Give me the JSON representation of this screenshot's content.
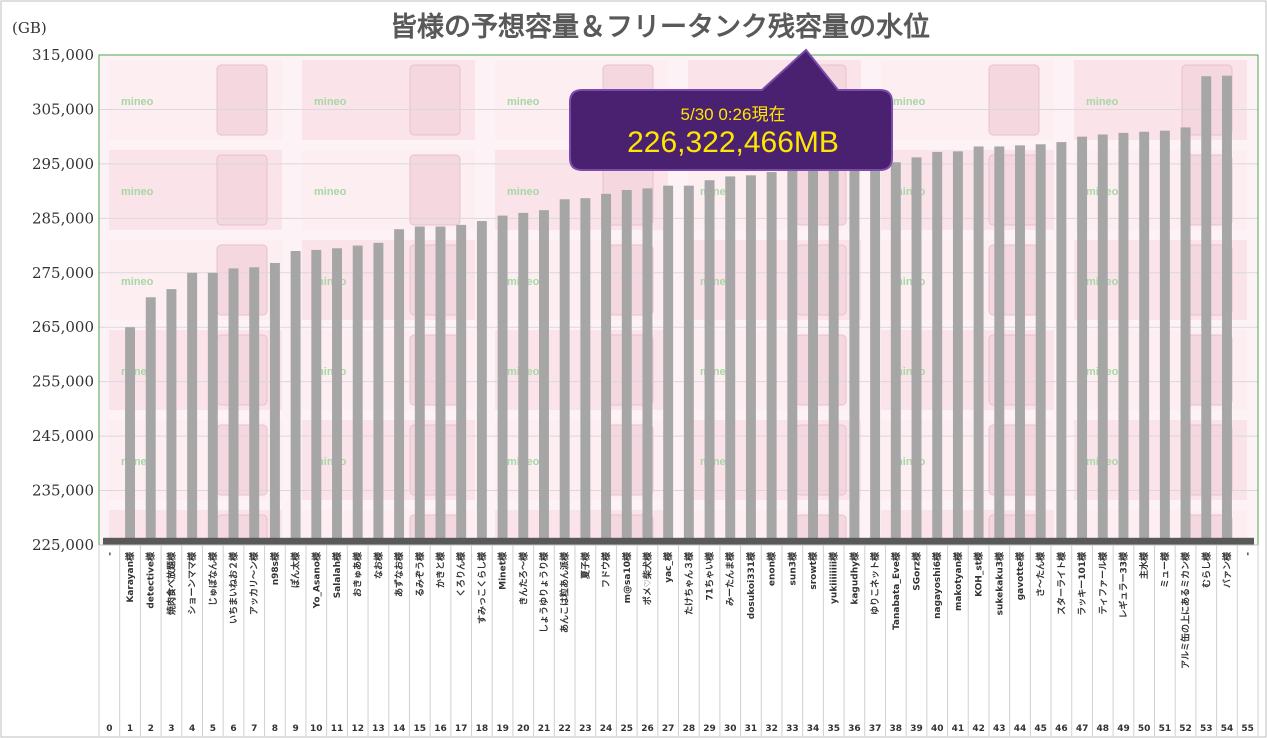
{
  "chart_data": {
    "type": "bar",
    "title": "皆様の予想容量＆フリータンク残容量の水位",
    "unit_label": "(GB)",
    "ylim": [
      225000,
      315000
    ],
    "yticks": [
      "225,000",
      "235,000",
      "245,000",
      "255,000",
      "265,000",
      "275,000",
      "285,000",
      "295,000",
      "305,000",
      "315,000"
    ],
    "ytick_values": [
      225000,
      235000,
      245000,
      255000,
      265000,
      275000,
      285000,
      295000,
      305000,
      315000
    ],
    "grid": true,
    "base_level": 226322,
    "indices": [
      "0",
      "1",
      "2",
      "3",
      "4",
      "5",
      "6",
      "7",
      "8",
      "9",
      "10",
      "11",
      "12",
      "13",
      "14",
      "15",
      "16",
      "17",
      "18",
      "19",
      "20",
      "21",
      "22",
      "23",
      "24",
      "25",
      "26",
      "27",
      "28",
      "29",
      "30",
      "31",
      "32",
      "33",
      "34",
      "35",
      "36",
      "37",
      "38",
      "39",
      "40",
      "41",
      "42",
      "43",
      "44",
      "45",
      "46",
      "47",
      "48",
      "49",
      "50",
      "51",
      "52",
      "53",
      "54",
      "55"
    ],
    "categories": [
      "-",
      "Karayan様",
      "detective様",
      "焼肉食べ放題様",
      "ショーンママ様",
      "じゅぼなん様",
      "いちまいねお２様",
      "アッカリ～ン様",
      "n98s様",
      "ぽん太様",
      "Yo_Asano様",
      "Salalah様",
      "おきゅあ様",
      "なお様",
      "あずなお様",
      "るみぞう様",
      "かきと様",
      "くろりん様",
      "すみっこくらし様",
      "Minet様",
      "きんたろ～様",
      "しょうゆりょうり様",
      "あんこは粒あん派様",
      "夏子様",
      "フドウ様",
      "m@sa10様",
      "ポメ♡柴犬様",
      "yac_様",
      "たけちゃん３様",
      "71ちゃい様",
      "みーたんま様",
      "dosukoi331様",
      "enon様",
      "sun3様",
      "srowt様",
      "yukiiiiiiii様",
      "kagudhy様",
      "ゆりこネット様",
      "Tanabata_Eve様",
      "SGorz様",
      "nagayoshi6様",
      "makotyan様",
      "KOH_st様",
      "sukekaku3様",
      "gavotte様",
      "さ～たん様",
      "スターライト様",
      "ラッキー101様",
      "ティファール様",
      "レギュラー33様",
      "主水様",
      "ミュー様",
      "アルミ缶の上にあるミカン様",
      "むらし様",
      "バァン様",
      "-"
    ],
    "values": [
      null,
      265000,
      270500,
      272000,
      275000,
      275000,
      275800,
      276000,
      276800,
      279000,
      279200,
      279500,
      280000,
      280500,
      283000,
      283500,
      283500,
      283800,
      284500,
      285500,
      286000,
      286500,
      288500,
      288700,
      289500,
      290200,
      290500,
      291000,
      291000,
      292000,
      292700,
      292900,
      293500,
      294000,
      294500,
      294500,
      294700,
      294800,
      295300,
      296200,
      297200,
      297300,
      298200,
      298200,
      298400,
      298600,
      299000,
      300000,
      300400,
      300700,
      300900,
      301100,
      301700,
      311100,
      311200,
      null
    ],
    "callout": {
      "line1": "5/30 0:26現在",
      "line2": "226,322,466MB"
    },
    "background_watermark": "mineo",
    "colors": {
      "bar": "#a6a6a6",
      "base": "#595959",
      "plot_border": "#4aa84a",
      "callout_bg": "#4a2070",
      "callout_text": "#ffe600",
      "grid": "#d9d9d9"
    }
  }
}
